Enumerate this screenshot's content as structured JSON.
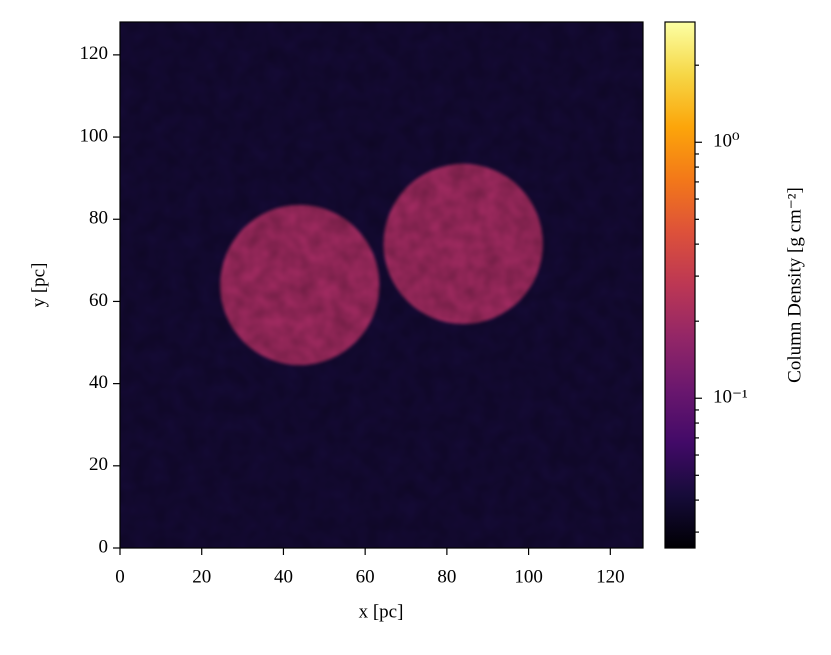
{
  "chart_data": {
    "type": "image",
    "xlabel": "x [pc]",
    "ylabel": "y [pc]",
    "xlim": [
      0,
      128
    ],
    "ylim": [
      0,
      128
    ],
    "xticks": [
      0,
      20,
      40,
      60,
      80,
      100,
      120
    ],
    "yticks": [
      0,
      20,
      40,
      60,
      80,
      100,
      120
    ],
    "colormap": "inferno",
    "color_scale": "log",
    "background_value": 0.04,
    "clouds": [
      {
        "x": 44,
        "y": 64,
        "r": 19.5,
        "value": 0.2
      },
      {
        "x": 84,
        "y": 74,
        "r": 19.5,
        "value": 0.2
      }
    ],
    "colorbar_label": "Column Density [g cm⁻²]",
    "clim": [
      0.026,
      2.95
    ],
    "cticks": [
      {
        "value": 0.1,
        "label": "10⁻¹"
      },
      {
        "value": 1,
        "label": "10⁰"
      }
    ],
    "cminorticks": [
      0.03,
      0.04,
      0.05,
      0.06,
      0.07,
      0.08,
      0.09,
      0.2,
      0.3,
      0.4,
      0.5,
      0.6,
      0.7,
      0.8,
      0.9,
      2
    ]
  }
}
